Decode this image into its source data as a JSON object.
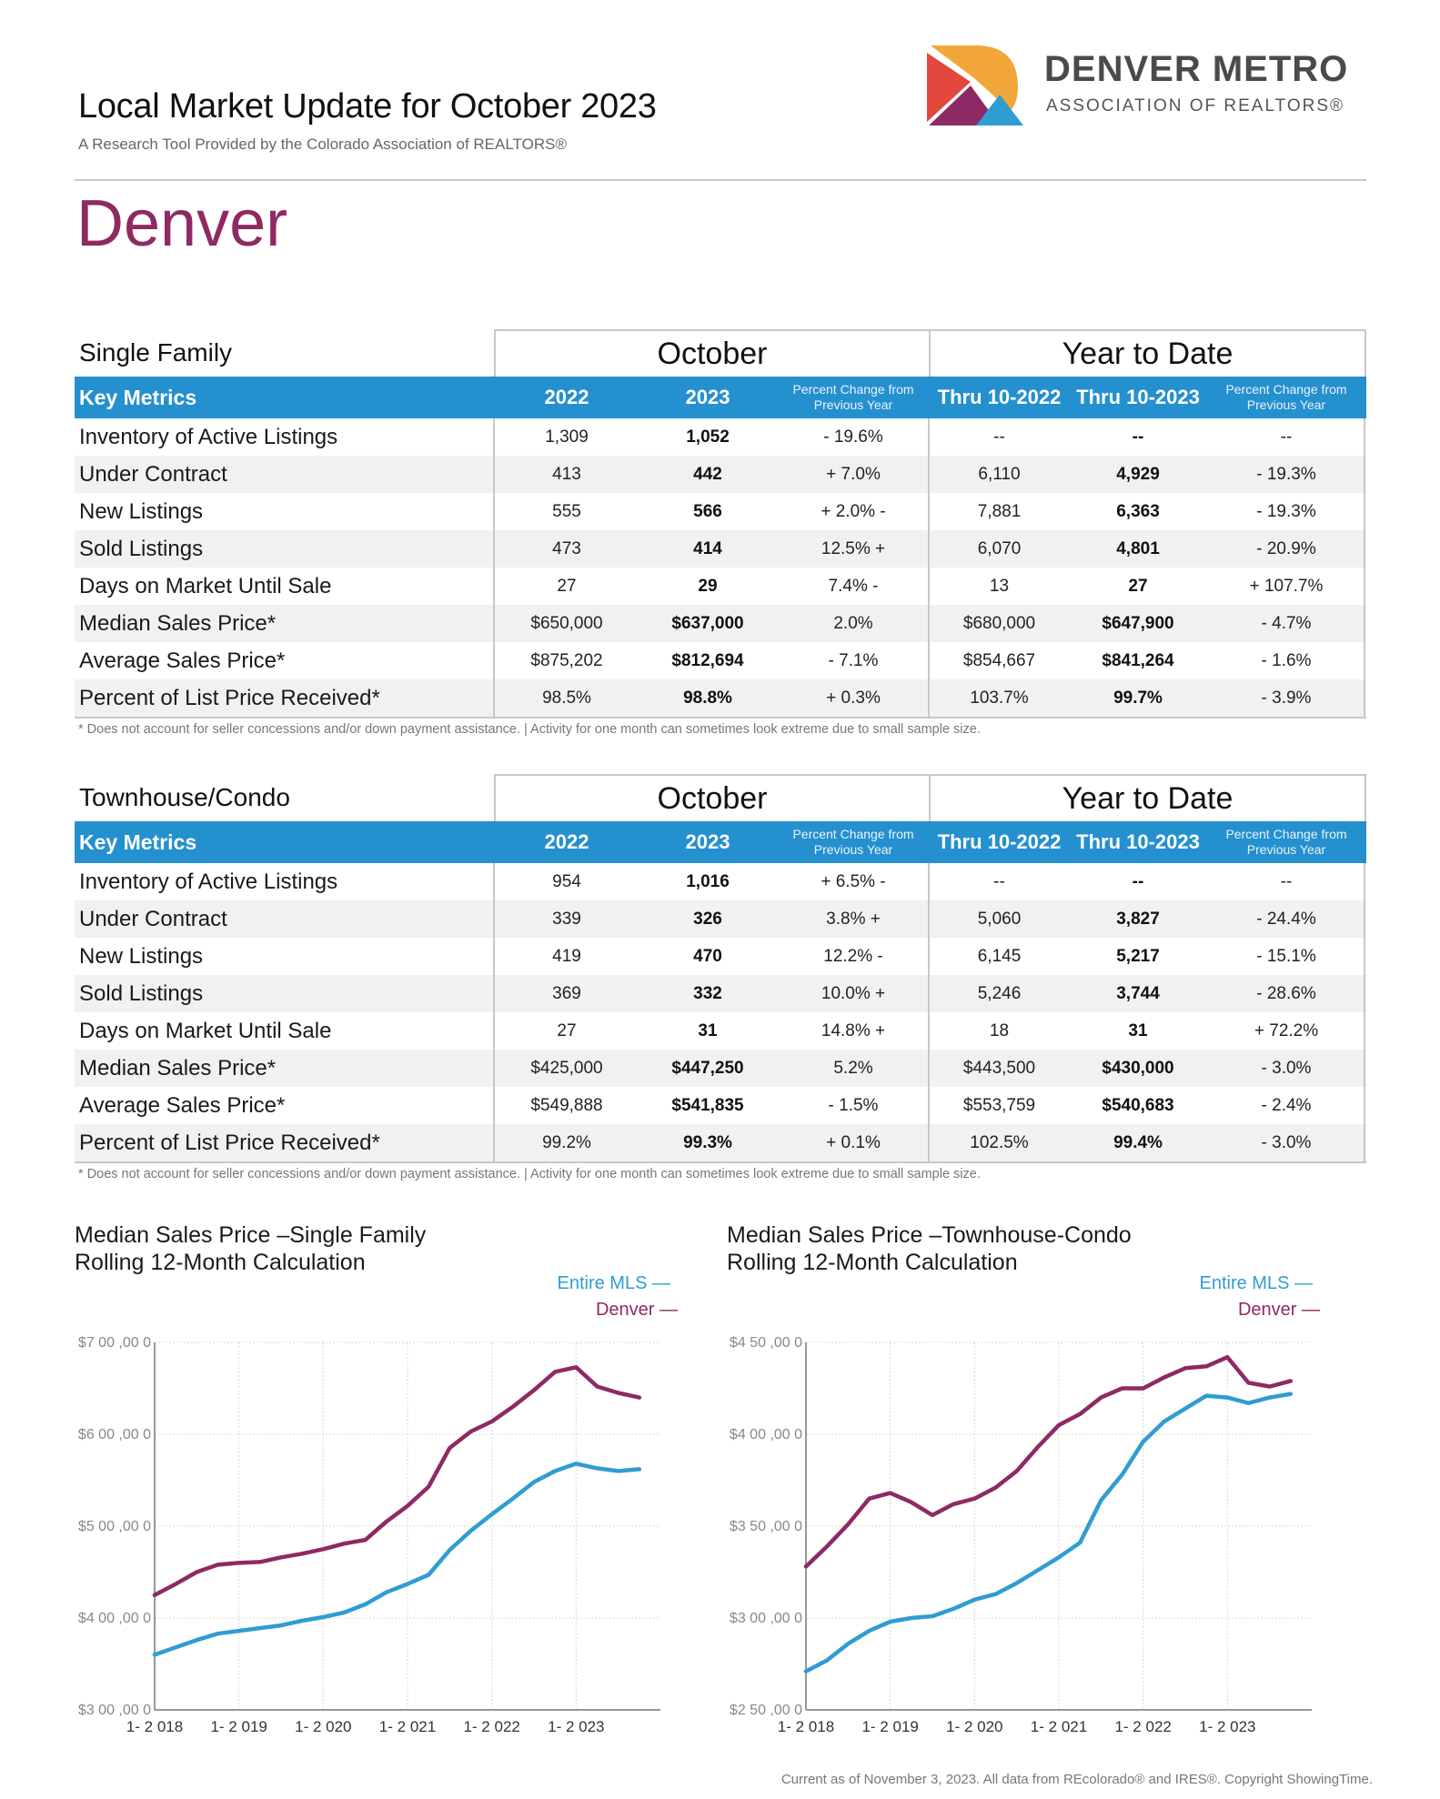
{
  "header": {
    "title": "Local Market Update for October 2023",
    "subtitle": "A Research Tool Provided by the Colorado Association of REALTORS®",
    "org_name": "DENVER METRO",
    "org_sub": "ASSOCIATION OF REALTORS®",
    "city": "Denver"
  },
  "tables": [
    {
      "label": "Single Family",
      "october": "October",
      "ytd": "Year to Date",
      "headers": [
        "Key Metrics",
        "2022",
        "2023",
        "Percent Change from Previous Year",
        "Thru 10-2022",
        "Thru 10-2023",
        "Percent Change from Previous Year"
      ],
      "rows": [
        [
          "Inventory of Active Listings",
          "1,309",
          "1,052",
          "- 19.6%",
          "--",
          "--",
          "--"
        ],
        [
          "Under Contract",
          "413",
          "442",
          "+ 7.0%",
          "6,110",
          "4,929",
          "- 19.3%"
        ],
        [
          "New Listings",
          "555",
          "566",
          "+ 2.0% -",
          "7,881",
          "6,363",
          "- 19.3%"
        ],
        [
          "Sold Listings",
          "473",
          "414",
          "12.5% +",
          "6,070",
          "4,801",
          "- 20.9%"
        ],
        [
          "Days on Market Until Sale",
          "27",
          "29",
          "7.4% -",
          "13",
          "27",
          "+ 107.7%"
        ],
        [
          "Median Sales Price*",
          "$650,000",
          "$637,000",
          "2.0%",
          "$680,000",
          "$647,900",
          "- 4.7%"
        ],
        [
          "Average Sales Price*",
          "$875,202",
          "$812,694",
          "- 7.1%",
          "$854,667",
          "$841,264",
          "- 1.6%"
        ],
        [
          "Percent of List Price Received*",
          "98.5%",
          "98.8%",
          "+ 0.3%",
          "103.7%",
          "99.7%",
          "- 3.9%"
        ]
      ],
      "footnote": "* Does not account for seller concessions and/or down payment assistance. | Activity for one month can sometimes look extreme due to small sample size."
    },
    {
      "label": "Townhouse/Condo",
      "october": "October",
      "ytd": "Year to Date",
      "headers": [
        "Key Metrics",
        "2022",
        "2023",
        "Percent Change from Previous Year",
        "Thru 10-2022",
        "Thru 10-2023",
        "Percent Change from Previous Year"
      ],
      "rows": [
        [
          "Inventory of Active Listings",
          "954",
          "1,016",
          "+ 6.5% -",
          "--",
          "--",
          "--"
        ],
        [
          "Under Contract",
          "339",
          "326",
          "3.8% +",
          "5,060",
          "3,827",
          "- 24.4%"
        ],
        [
          "New Listings",
          "419",
          "470",
          "12.2% -",
          "6,145",
          "5,217",
          "- 15.1%"
        ],
        [
          "Sold Listings",
          "369",
          "332",
          "10.0% +",
          "5,246",
          "3,744",
          "- 28.6%"
        ],
        [
          "Days on Market Until Sale",
          "27",
          "31",
          "14.8% +",
          "18",
          "31",
          "+ 72.2%"
        ],
        [
          "Median Sales Price*",
          "$425,000",
          "$447,250",
          "5.2%",
          "$443,500",
          "$430,000",
          "- 3.0%"
        ],
        [
          "Average Sales Price*",
          "$549,888",
          "$541,835",
          "- 1.5%",
          "$553,759",
          "$540,683",
          "- 2.4%"
        ],
        [
          "Percent of List Price Received*",
          "99.2%",
          "99.3%",
          "+ 0.1%",
          "102.5%",
          "99.4%",
          "- 3.0%"
        ]
      ],
      "footnote": "* Does not account for seller concessions and/or down payment assistance. | Activity for one month can sometimes look extreme due to small sample size."
    }
  ],
  "chart_data": [
    {
      "type": "line",
      "title": "Median Sales Price –Single Family",
      "subtitle": "Rolling 12-Month Calculation",
      "ylim": [
        300000,
        700000
      ],
      "yticks": [
        300000,
        400000,
        500000,
        600000,
        700000
      ],
      "ytick_labels": [
        "$3 00 ,00 0",
        "$4 00 ,00 0",
        "$5 00 ,00 0",
        "$6 00 ,00 0",
        "$7 00 ,00 0"
      ],
      "xlim": [
        2018.0,
        2024.0
      ],
      "xticks": [
        2018,
        2019,
        2020,
        2021,
        2022,
        2023
      ],
      "xtick_labels": [
        "1- 2 018",
        "1- 2 019",
        "1- 2 020",
        "1- 2 021",
        "1- 2 022",
        "1- 2 023"
      ],
      "grid": true,
      "legend": "top-right",
      "series": [
        {
          "name": "Entire MLS",
          "color": "#2f9dd1",
          "x": [
            2018.0,
            2018.25,
            2018.5,
            2018.75,
            2019.0,
            2019.25,
            2019.5,
            2019.75,
            2020.0,
            2020.25,
            2020.5,
            2020.75,
            2021.0,
            2021.25,
            2021.5,
            2021.75,
            2022.0,
            2022.25,
            2022.5,
            2022.75,
            2023.0,
            2023.25,
            2023.5,
            2023.75
          ],
          "y": [
            360000,
            368000,
            376000,
            383000,
            386000,
            389000,
            392000,
            397000,
            401000,
            406000,
            415000,
            428000,
            437000,
            447000,
            474000,
            495000,
            513000,
            530000,
            548000,
            560000,
            568000,
            563000,
            560000,
            562000
          ]
        },
        {
          "name": "Denver",
          "color": "#8e2a63",
          "x": [
            2018.0,
            2018.25,
            2018.5,
            2018.75,
            2019.0,
            2019.25,
            2019.5,
            2019.75,
            2020.0,
            2020.25,
            2020.5,
            2020.75,
            2021.0,
            2021.25,
            2021.5,
            2021.75,
            2022.0,
            2022.25,
            2022.5,
            2022.75,
            2023.0,
            2023.25,
            2023.5,
            2023.75
          ],
          "y": [
            425000,
            437000,
            450000,
            458000,
            460000,
            461000,
            466000,
            470000,
            475000,
            481000,
            485000,
            505000,
            522000,
            543000,
            585000,
            603000,
            614000,
            630000,
            648000,
            668000,
            673000,
            652000,
            645000,
            640000
          ]
        }
      ]
    },
    {
      "type": "line",
      "title": "Median Sales Price –Townhouse-Condo",
      "subtitle": "Rolling 12-Month Calculation",
      "ylim": [
        250000,
        450000
      ],
      "yticks": [
        250000,
        300000,
        350000,
        400000,
        450000
      ],
      "ytick_labels": [
        "$2 50 ,00 0",
        "$3 00 ,00 0",
        "$3 50 ,00 0",
        "$4 00 ,00 0",
        "$4 50 ,00 0"
      ],
      "xlim": [
        2018.0,
        2024.0
      ],
      "xticks": [
        2018,
        2019,
        2020,
        2021,
        2022,
        2023
      ],
      "xtick_labels": [
        "1- 2 018",
        "1- 2 019",
        "1- 2 020",
        "1- 2 021",
        "1- 2 022",
        "1- 2 023"
      ],
      "grid": true,
      "legend": "top-right",
      "series": [
        {
          "name": "Entire MLS",
          "color": "#2f9dd1",
          "x": [
            2018.0,
            2018.25,
            2018.5,
            2018.75,
            2019.0,
            2019.25,
            2019.5,
            2019.75,
            2020.0,
            2020.25,
            2020.5,
            2020.75,
            2021.0,
            2021.25,
            2021.5,
            2021.75,
            2022.0,
            2022.25,
            2022.5,
            2022.75,
            2023.0,
            2023.25,
            2023.5,
            2023.75
          ],
          "y": [
            271000,
            277000,
            286000,
            293000,
            298000,
            300000,
            301000,
            305000,
            310000,
            313000,
            319000,
            326000,
            333000,
            341000,
            364000,
            378000,
            396000,
            407000,
            414000,
            421000,
            420000,
            417000,
            420000,
            422000
          ]
        },
        {
          "name": "Denver",
          "color": "#8e2a63",
          "x": [
            2018.0,
            2018.25,
            2018.5,
            2018.75,
            2019.0,
            2019.25,
            2019.5,
            2019.75,
            2020.0,
            2020.25,
            2020.5,
            2020.75,
            2021.0,
            2021.25,
            2021.5,
            2021.75,
            2022.0,
            2022.25,
            2022.5,
            2022.75,
            2023.0,
            2023.25,
            2023.5,
            2023.75
          ],
          "y": [
            328000,
            339000,
            351000,
            365000,
            368000,
            363000,
            356000,
            362000,
            365000,
            371000,
            380000,
            393000,
            405000,
            411000,
            420000,
            425000,
            425000,
            431000,
            436000,
            437000,
            442000,
            428000,
            426000,
            429000
          ]
        }
      ]
    }
  ],
  "footer": "Current as of November 3, 2023. All data from REcolorado® and IRES®. Copyright ShowingTime."
}
